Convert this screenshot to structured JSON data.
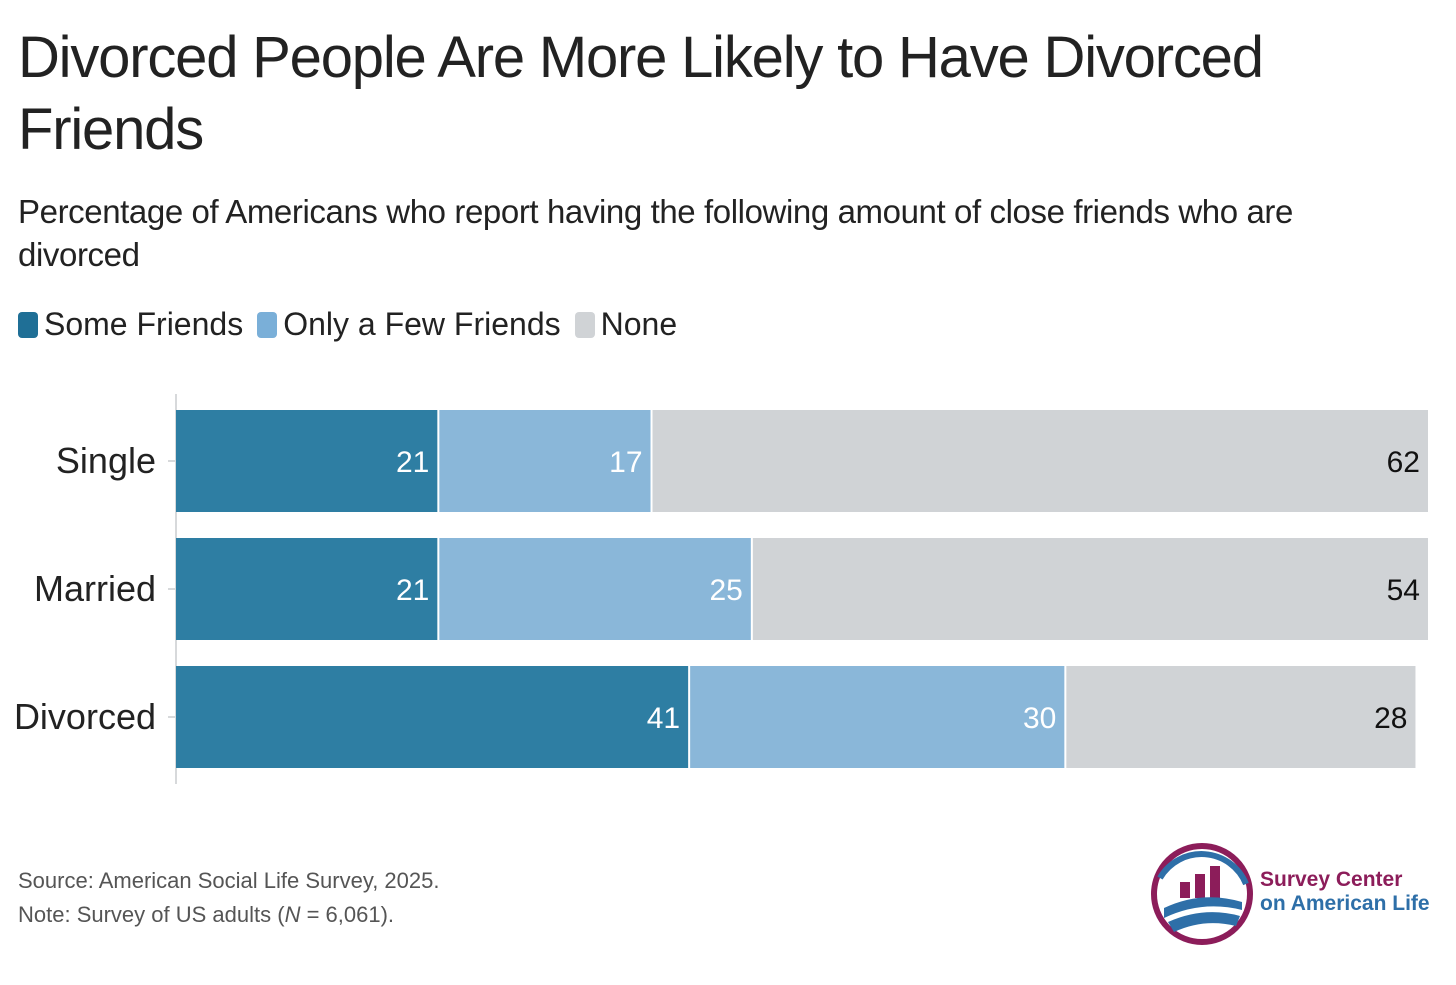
{
  "title": "Divorced People Are More Likely to Have Divorced Friends",
  "subtitle": "Percentage of Americans who report having the following amount of close friends who are divorced",
  "chart_data": {
    "type": "bar",
    "orientation": "horizontal",
    "stacked": true,
    "categories": [
      "Single",
      "Married",
      "Divorced"
    ],
    "series": [
      {
        "name": "Some Friends",
        "color": "#2e7ea3",
        "values": [
          21,
          21,
          41
        ],
        "label_color": "#ffffff"
      },
      {
        "name": "Only a Few Friends",
        "color": "#8ab7d9",
        "values": [
          17,
          25,
          30
        ],
        "label_color": "#ffffff"
      },
      {
        "name": "None",
        "color": "#d0d3d6",
        "values": [
          62,
          54,
          28
        ],
        "label_color": "#111111"
      }
    ],
    "xlim": [
      0,
      100
    ],
    "grid": false,
    "legend": "top-left"
  },
  "legend_swatch_colors": [
    "#1f6f96",
    "#7aafd8",
    "#d0d3d6"
  ],
  "footer": {
    "source": "Source: American Social Life Survey, 2025.",
    "note_prefix": "Note: Survey of US adults (",
    "note_n": "N",
    "note_suffix": " = 6,061)."
  },
  "logo": {
    "line1": "Survey Center",
    "line2": "on American Life",
    "ring_color": "#8c1d5a",
    "accent_color": "#2e6fa8"
  }
}
